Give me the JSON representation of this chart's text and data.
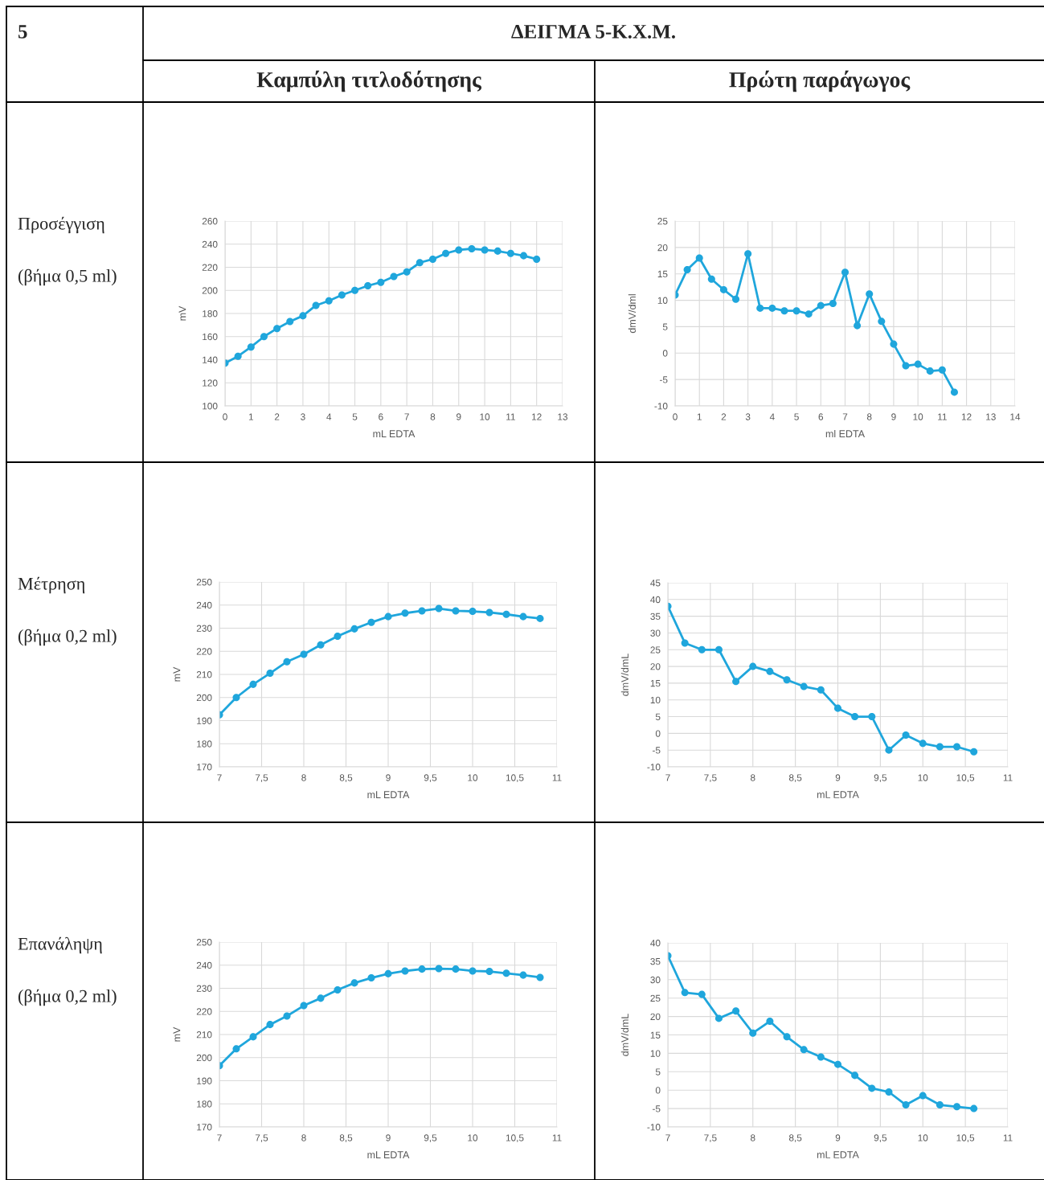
{
  "chart_data": [
    {
      "type": "line",
      "title": "Καμπύλη τιτλοδότησης",
      "annotations": [
        "5",
        "ΔΕΙΓΜΑ 5-Κ.Χ.Μ.",
        "Προσέγγιση",
        "(βήμα 0,5 ml)"
      ],
      "xlabel": "mL EDTA",
      "ylabel": "mV",
      "x": [
        0,
        0.5,
        1,
        1.5,
        2,
        2.5,
        3,
        3.5,
        4,
        4.5,
        5,
        5.5,
        6,
        6.5,
        7,
        7.5,
        8,
        8.5,
        9,
        9.5,
        10,
        10.5,
        11,
        11.5,
        12
      ],
      "series": [
        {
          "color": "#1fa6dc",
          "values": [
            137,
            143,
            151,
            160,
            167,
            173,
            178,
            187,
            191,
            196,
            200,
            204,
            207,
            212,
            216,
            224,
            227,
            232,
            235,
            236,
            235,
            234,
            232,
            230,
            227
          ]
        }
      ],
      "xlim": [
        0,
        13
      ],
      "xticks": [
        0,
        1,
        2,
        3,
        4,
        5,
        6,
        7,
        8,
        9,
        10,
        11,
        12,
        13
      ],
      "ylim": [
        100,
        260
      ],
      "yticks": [
        100,
        120,
        140,
        160,
        180,
        200,
        220,
        240,
        260
      ],
      "grid": true,
      "marker": "circle"
    },
    {
      "type": "line",
      "title": "Πρώτη παράγωγος",
      "xlabel": "ml EDTA",
      "ylabel": "dmV/dml",
      "x": [
        0,
        0.5,
        1,
        1.5,
        2,
        2.5,
        3,
        3.5,
        4,
        4.5,
        5,
        5.5,
        6,
        6.5,
        7,
        7.5,
        8,
        8.5,
        9,
        9.5,
        10,
        10.5,
        11,
        11.5
      ],
      "series": [
        {
          "color": "#1fa6dc",
          "values": [
            11,
            15.8,
            18,
            14,
            12,
            10.2,
            18.8,
            8.5,
            8.5,
            8,
            8,
            7.4,
            9,
            9.4,
            15.3,
            5.2,
            11.2,
            6,
            1.7,
            -2.4,
            -2.1,
            -3.4,
            -3.2,
            -7.4
          ]
        }
      ],
      "xlim": [
        0,
        14
      ],
      "xticks": [
        0,
        1,
        2,
        3,
        4,
        5,
        6,
        7,
        8,
        9,
        10,
        11,
        12,
        13,
        14
      ],
      "ylim": [
        -10,
        25
      ],
      "yticks": [
        -10,
        -5,
        0,
        5,
        10,
        15,
        20,
        25
      ],
      "grid": true,
      "marker": "circle"
    },
    {
      "type": "line",
      "annotations": [
        "Μέτρηση",
        "(βήμα 0,2 ml)"
      ],
      "xlabel": "mL EDTA",
      "ylabel": "mV",
      "x": [
        7,
        7.2,
        7.4,
        7.6,
        7.8,
        8,
        8.2,
        8.4,
        8.6,
        8.8,
        9,
        9.2,
        9.4,
        9.6,
        9.8,
        10,
        10.2,
        10.4,
        10.6,
        10.8
      ],
      "series": [
        {
          "color": "#1fa6dc",
          "values": [
            192.5,
            200,
            205.7,
            210.5,
            215.5,
            218.7,
            222.8,
            226.5,
            229.7,
            232.5,
            235,
            236.5,
            237.5,
            238.5,
            237.5,
            237.3,
            236.8,
            236,
            235,
            234.2
          ]
        }
      ],
      "xlim": [
        7,
        11
      ],
      "xticks": [
        7,
        {
          "value": 7.5,
          "label": "7,5"
        },
        8,
        {
          "value": 8.5,
          "label": "8,5"
        },
        9,
        {
          "value": 9.5,
          "label": "9,5"
        },
        10,
        {
          "value": 10.5,
          "label": "10,5"
        },
        11
      ],
      "ylim": [
        170,
        250
      ],
      "yticks": [
        170,
        180,
        190,
        200,
        210,
        220,
        230,
        240,
        250
      ],
      "grid": true,
      "marker": "circle"
    },
    {
      "type": "line",
      "xlabel": "mL EDTA",
      "ylabel": "dmV/dmL",
      "x": [
        7,
        7.2,
        7.4,
        7.6,
        7.8,
        8,
        8.2,
        8.4,
        8.6,
        8.8,
        9,
        9.2,
        9.4,
        9.6,
        9.8,
        10,
        10.2,
        10.4,
        10.6
      ],
      "series": [
        {
          "color": "#1fa6dc",
          "values": [
            38,
            27,
            25,
            25,
            15.5,
            20,
            18.5,
            16,
            14,
            13,
            7.5,
            5,
            5,
            -5,
            -0.5,
            -3,
            -4,
            -4,
            -5.5
          ]
        }
      ],
      "xlim": [
        7,
        11
      ],
      "xticks": [
        7,
        {
          "value": 7.5,
          "label": "7,5"
        },
        8,
        {
          "value": 8.5,
          "label": "8,5"
        },
        9,
        {
          "value": 9.5,
          "label": "9,5"
        },
        10,
        {
          "value": 10.5,
          "label": "10,5"
        },
        11
      ],
      "ylim": [
        -10,
        45
      ],
      "yticks": [
        -10,
        -5,
        0,
        5,
        10,
        15,
        20,
        25,
        30,
        35,
        40,
        45
      ],
      "grid": true,
      "marker": "circle"
    },
    {
      "type": "line",
      "annotations": [
        "Επανάληψη",
        "(βήμα 0,2 ml)"
      ],
      "xlabel": "mL EDTA",
      "ylabel": "mV",
      "x": [
        7,
        7.2,
        7.4,
        7.6,
        7.8,
        8,
        8.2,
        8.4,
        8.6,
        8.8,
        9,
        9.2,
        9.4,
        9.6,
        9.8,
        10,
        10.2,
        10.4,
        10.6,
        10.8
      ],
      "series": [
        {
          "color": "#1fa6dc",
          "values": [
            196.5,
            203.8,
            209,
            214.3,
            218,
            222.5,
            225.7,
            229.3,
            232.3,
            234.5,
            236.3,
            237.5,
            238.3,
            238.5,
            238.3,
            237.5,
            237.3,
            236.5,
            235.7,
            234.7
          ]
        }
      ],
      "xlim": [
        7,
        11
      ],
      "xticks": [
        7,
        {
          "value": 7.5,
          "label": "7,5"
        },
        8,
        {
          "value": 8.5,
          "label": "8,5"
        },
        9,
        {
          "value": 9.5,
          "label": "9,5"
        },
        10,
        {
          "value": 10.5,
          "label": "10,5"
        },
        11
      ],
      "ylim": [
        170,
        250
      ],
      "yticks": [
        170,
        180,
        190,
        200,
        210,
        220,
        230,
        240,
        250
      ],
      "grid": true,
      "marker": "circle"
    },
    {
      "type": "line",
      "xlabel": "mL EDTA",
      "ylabel": "dmV/dmL",
      "x": [
        7,
        7.2,
        7.4,
        7.6,
        7.8,
        8,
        8.2,
        8.4,
        8.6,
        8.8,
        9,
        9.2,
        9.4,
        9.6,
        9.8,
        10,
        10.2,
        10.4,
        10.6
      ],
      "series": [
        {
          "color": "#1fa6dc",
          "values": [
            36.5,
            26.5,
            26,
            19.5,
            21.5,
            15.5,
            18.7,
            14.5,
            11,
            9,
            7,
            4,
            0.5,
            -0.5,
            -4,
            -1.5,
            -4,
            -4.5,
            -5
          ]
        }
      ],
      "xlim": [
        7,
        11
      ],
      "xticks": [
        7,
        {
          "value": 7.5,
          "label": "7,5"
        },
        8,
        {
          "value": 8.5,
          "label": "8,5"
        },
        9,
        {
          "value": 9.5,
          "label": "9,5"
        },
        10,
        {
          "value": 10.5,
          "label": "10,5"
        },
        11
      ],
      "ylim": [
        -10,
        40
      ],
      "yticks": [
        -10,
        -5,
        0,
        5,
        10,
        15,
        20,
        25,
        30,
        35,
        40
      ],
      "grid": true,
      "marker": "circle"
    }
  ]
}
